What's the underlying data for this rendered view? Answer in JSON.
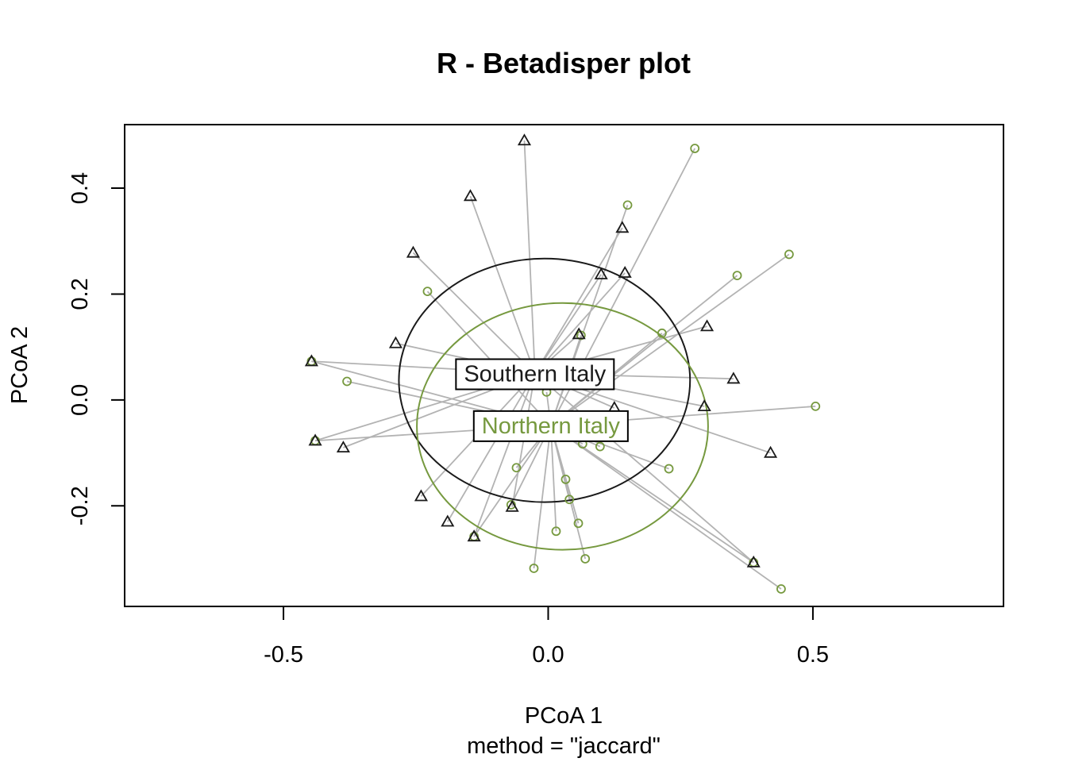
{
  "colors": {
    "southern": "#1a1a1a",
    "northern": "#76993f",
    "segment": "#b3b3b3",
    "frame": "#000000"
  },
  "chart_data": {
    "type": "scatter",
    "title": "R - Betadisper plot",
    "xlabel": "PCoA 1",
    "sublabel": "method = \"jaccard\"",
    "ylabel": "PCoA 2",
    "xlim": [
      -0.8,
      0.86
    ],
    "ylim": [
      -0.39,
      0.52
    ],
    "xticks": [
      -0.5,
      0.0,
      0.5
    ],
    "xtick_labels": [
      "-0.5",
      "0.0",
      "0.5"
    ],
    "yticks": [
      -0.2,
      0.0,
      0.2,
      0.4
    ],
    "ytick_labels": [
      "-0.2",
      "0.0",
      "0.2",
      "0.4"
    ],
    "grid": false,
    "groups": [
      {
        "label": "Southern Italy",
        "marker": "triangle",
        "color": "#1a1a1a",
        "centroid": [
          -0.025,
          0.05
        ],
        "ellipse": {
          "center": [
            -0.007,
            0.037
          ],
          "rx": 0.275,
          "ry": 0.23
        },
        "points": [
          [
            -0.045,
            0.49
          ],
          [
            -0.147,
            0.385
          ],
          [
            -0.255,
            0.278
          ],
          [
            -0.288,
            0.107
          ],
          [
            -0.447,
            0.073
          ],
          [
            -0.44,
            -0.077
          ],
          [
            -0.387,
            -0.09
          ],
          [
            -0.24,
            -0.182
          ],
          [
            -0.19,
            -0.23
          ],
          [
            -0.14,
            -0.258
          ],
          [
            -0.068,
            -0.202
          ],
          [
            0.058,
            0.124
          ],
          [
            0.1,
            0.237
          ],
          [
            0.14,
            0.325
          ],
          [
            0.145,
            0.24
          ],
          [
            0.3,
            0.139
          ],
          [
            0.35,
            0.04
          ],
          [
            0.295,
            -0.012
          ],
          [
            0.125,
            -0.015
          ],
          [
            0.42,
            -0.1
          ],
          [
            0.388,
            -0.307
          ]
        ]
      },
      {
        "label": "Northern Italy",
        "marker": "circle",
        "color": "#76993f",
        "centroid": [
          0.005,
          -0.048
        ],
        "ellipse": {
          "center": [
            0.027,
            -0.05
          ],
          "rx": 0.275,
          "ry": 0.233
        },
        "points": [
          [
            0.277,
            0.475
          ],
          [
            0.15,
            0.368
          ],
          [
            0.455,
            0.275
          ],
          [
            0.357,
            0.235
          ],
          [
            0.215,
            0.126
          ],
          [
            -0.228,
            0.205
          ],
          [
            -0.38,
            0.035
          ],
          [
            -0.447,
            0.073
          ],
          [
            -0.44,
            -0.077
          ],
          [
            -0.003,
            0.015
          ],
          [
            0.062,
            0.122
          ],
          [
            0.505,
            -0.012
          ],
          [
            0.065,
            -0.083
          ],
          [
            0.098,
            -0.088
          ],
          [
            0.228,
            -0.13
          ],
          [
            -0.06,
            -0.128
          ],
          [
            0.033,
            -0.15
          ],
          [
            0.04,
            -0.188
          ],
          [
            -0.07,
            -0.198
          ],
          [
            0.015,
            -0.248
          ],
          [
            0.057,
            -0.233
          ],
          [
            0.07,
            -0.3
          ],
          [
            -0.027,
            -0.318
          ],
          [
            0.44,
            -0.357
          ],
          [
            -0.14,
            -0.258
          ],
          [
            0.388,
            -0.307
          ]
        ]
      }
    ]
  }
}
